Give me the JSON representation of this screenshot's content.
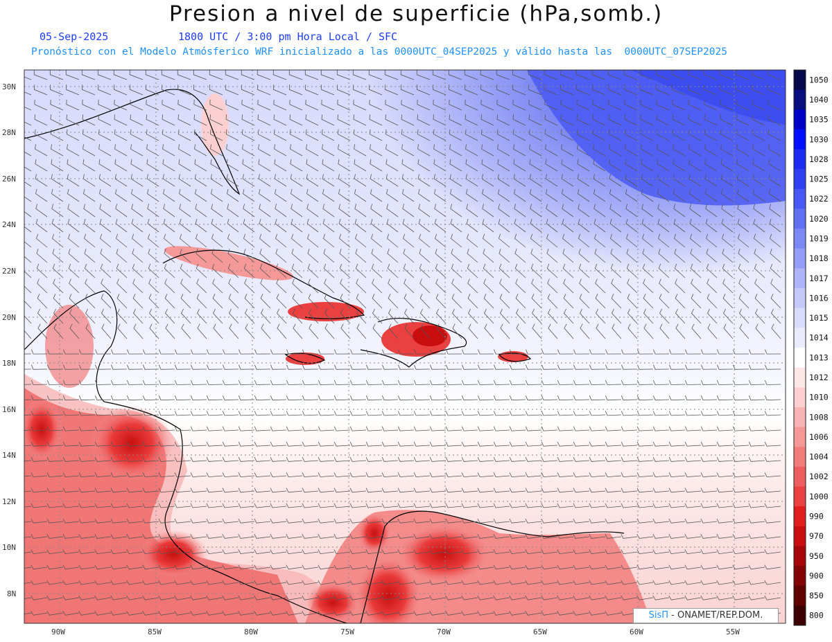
{
  "title": "Presion a nivel de superficie (hPa,somb.)",
  "date": "05-Sep-2025",
  "time_info": "1800 UTC / 3:00 pm Hora Local / SFC",
  "model_info": "Pronóstico con el Modelo Atmósferico WRF inicializado a las 0000UTC_04SEP2025 y válido hasta las  0000UTC_07SEP2025",
  "lat_labels": [
    "30N",
    "28N",
    "26N",
    "24N",
    "22N",
    "20N",
    "18N",
    "16N",
    "14N",
    "12N",
    "10N",
    "8N"
  ],
  "lon_labels": [
    "90W",
    "85W",
    "80W",
    "75W",
    "70W",
    "65W",
    "60W",
    "55W"
  ],
  "colorbar": {
    "labels": [
      "1050",
      "1040",
      "1035",
      "1030",
      "1028",
      "1025",
      "1022",
      "1020",
      "1019",
      "1018",
      "1017",
      "1016",
      "1015",
      "1014",
      "1013",
      "1012",
      "1010",
      "1008",
      "1006",
      "1004",
      "1002",
      "1000",
      "990",
      "970",
      "950",
      "900",
      "850",
      "800"
    ],
    "colors": [
      "#050a4a",
      "#0a0f80",
      "#0000c8",
      "#0010ff",
      "#1c2cf0",
      "#3040f0",
      "#4858f4",
      "#6270f4",
      "#7c88f4",
      "#949ef6",
      "#adb4f8",
      "#c4c9fa",
      "#d9dcfb",
      "#eaecfd",
      "#ffffff",
      "#fde6e6",
      "#fcd0d0",
      "#f8b4b4",
      "#f59898",
      "#f27c7c",
      "#ee5e5e",
      "#ea4040",
      "#e01e1e",
      "#c80e0e",
      "#a50808",
      "#820404",
      "#600202",
      "#3c0000"
    ]
  },
  "credit": {
    "logo": "SisΠ",
    "text": "- ONAMET/REP.DOM."
  }
}
